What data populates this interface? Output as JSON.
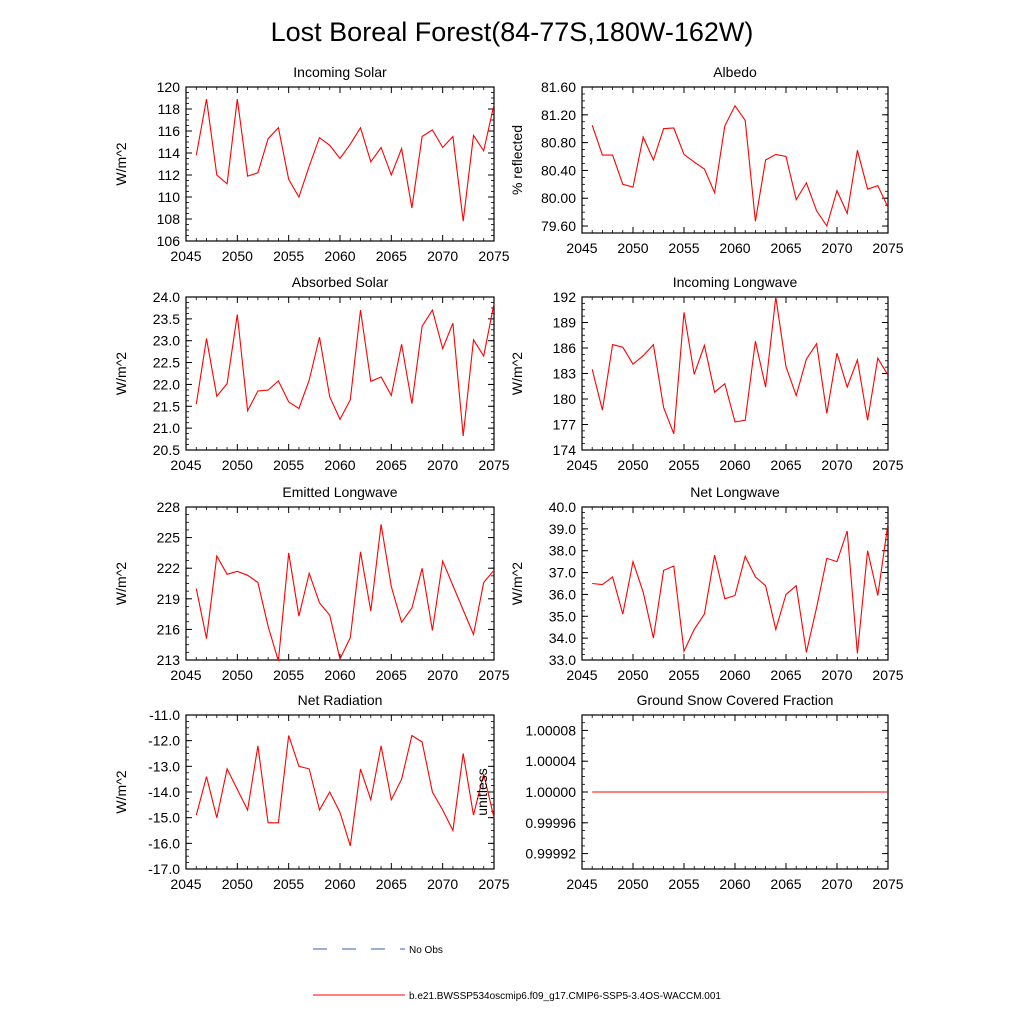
{
  "figure": {
    "title": "Lost Boreal Forest(84-77S,180W-162W)",
    "legend": {
      "obs_label": "No Obs",
      "model_label": "b.e21.BWSSP534oscmip6.f09_g17.CMIP6-SSP5-3.4OS-WACCM.001",
      "obs_color": "#3b5bb5",
      "model_color": "#ff0000"
    }
  },
  "chart_data": [
    {
      "type": "line",
      "title": "Incoming Solar",
      "ylabel": "W/m^2",
      "xlim": [
        2045,
        2075
      ],
      "ylim": [
        106,
        120
      ],
      "xticks": [
        2045,
        2050,
        2055,
        2060,
        2065,
        2070,
        2075
      ],
      "yticks": [
        "106",
        "108",
        "110",
        "112",
        "114",
        "116",
        "118",
        "120"
      ],
      "yticks_values": [
        106,
        108,
        110,
        112,
        114,
        116,
        118,
        120
      ],
      "x": [
        2046,
        2047,
        2048,
        2049,
        2050,
        2051,
        2052,
        2053,
        2054,
        2055,
        2056,
        2057,
        2058,
        2059,
        2060,
        2061,
        2062,
        2063,
        2064,
        2065,
        2066,
        2067,
        2068,
        2069,
        2070,
        2071,
        2072,
        2073,
        2074,
        2075
      ],
      "values": [
        113.8,
        118.9,
        112.0,
        111.2,
        118.9,
        111.9,
        112.2,
        115.3,
        116.3,
        111.6,
        110.0,
        112.8,
        115.4,
        114.7,
        113.5,
        114.8,
        116.3,
        113.2,
        114.5,
        112.0,
        114.4,
        109.0,
        115.5,
        116.1,
        114.5,
        115.5,
        107.8,
        115.6,
        114.2,
        118.4
      ]
    },
    {
      "type": "line",
      "title": "Albedo",
      "ylabel": "% reflected",
      "xlim": [
        2045,
        2075
      ],
      "ylim": [
        79.5,
        81.6
      ],
      "xticks": [
        2045,
        2050,
        2055,
        2060,
        2065,
        2070,
        2075
      ],
      "yticks": [
        "79.60",
        "80.00",
        "80.40",
        "80.80",
        "81.20",
        "81.60"
      ],
      "yticks_values": [
        79.6,
        80.0,
        80.4,
        80.8,
        81.2,
        81.6
      ],
      "x": [
        2046,
        2047,
        2048,
        2049,
        2050,
        2051,
        2052,
        2053,
        2054,
        2055,
        2056,
        2057,
        2058,
        2059,
        2060,
        2061,
        2062,
        2063,
        2064,
        2065,
        2066,
        2067,
        2068,
        2069,
        2070,
        2071,
        2072,
        2073,
        2074,
        2075
      ],
      "values": [
        81.05,
        80.62,
        80.62,
        80.2,
        80.16,
        80.88,
        80.55,
        81.0,
        81.01,
        80.63,
        80.52,
        80.42,
        80.08,
        81.04,
        81.33,
        81.12,
        79.67,
        80.55,
        80.63,
        80.6,
        79.98,
        80.22,
        79.82,
        79.6,
        80.11,
        79.78,
        80.69,
        80.13,
        80.18,
        79.87
      ]
    },
    {
      "type": "line",
      "title": "Absorbed Solar",
      "ylabel": "W/m^2",
      "xlim": [
        2045,
        2075
      ],
      "ylim": [
        20.5,
        24.0
      ],
      "xticks": [
        2045,
        2050,
        2055,
        2060,
        2065,
        2070,
        2075
      ],
      "yticks": [
        "20.5",
        "21.0",
        "21.5",
        "22.0",
        "22.5",
        "23.0",
        "23.5",
        "24.0"
      ],
      "yticks_values": [
        20.5,
        21.0,
        21.5,
        22.0,
        22.5,
        23.0,
        23.5,
        24.0
      ],
      "x": [
        2046,
        2047,
        2048,
        2049,
        2050,
        2051,
        2052,
        2053,
        2054,
        2055,
        2056,
        2057,
        2058,
        2059,
        2060,
        2061,
        2062,
        2063,
        2064,
        2065,
        2066,
        2067,
        2068,
        2069,
        2070,
        2071,
        2072,
        2073,
        2074,
        2075
      ],
      "values": [
        21.55,
        23.05,
        21.73,
        22.02,
        23.6,
        21.4,
        21.85,
        21.87,
        22.08,
        21.6,
        21.45,
        22.1,
        23.08,
        21.72,
        21.2,
        21.65,
        23.7,
        22.07,
        22.17,
        21.75,
        22.92,
        21.56,
        23.33,
        23.7,
        22.82,
        23.4,
        20.82,
        23.02,
        22.65,
        23.85
      ]
    },
    {
      "type": "line",
      "title": "Incoming Longwave",
      "ylabel": "W/m^2",
      "xlim": [
        2045,
        2075
      ],
      "ylim": [
        174,
        192
      ],
      "xticks": [
        2045,
        2050,
        2055,
        2060,
        2065,
        2070,
        2075
      ],
      "yticks": [
        "174",
        "177",
        "180",
        "183",
        "186",
        "189",
        "192"
      ],
      "yticks_values": [
        174,
        177,
        180,
        183,
        186,
        189,
        192
      ],
      "x": [
        2046,
        2047,
        2048,
        2049,
        2050,
        2051,
        2052,
        2053,
        2054,
        2055,
        2056,
        2057,
        2058,
        2059,
        2060,
        2061,
        2062,
        2063,
        2064,
        2065,
        2066,
        2067,
        2068,
        2069,
        2070,
        2071,
        2072,
        2073,
        2074,
        2075
      ],
      "values": [
        183.5,
        178.7,
        186.4,
        186.1,
        184.1,
        185.1,
        186.4,
        179.0,
        175.9,
        190.2,
        182.9,
        186.3,
        180.8,
        181.8,
        177.3,
        177.5,
        186.8,
        181.4,
        192.0,
        183.8,
        180.4,
        184.7,
        186.5,
        178.3,
        185.4,
        181.4,
        184.6,
        177.5,
        184.8,
        182.8
      ]
    },
    {
      "type": "line",
      "title": "Emitted Longwave",
      "ylabel": "W/m^2",
      "xlim": [
        2045,
        2075
      ],
      "ylim": [
        213,
        228
      ],
      "xticks": [
        2045,
        2050,
        2055,
        2060,
        2065,
        2070,
        2075
      ],
      "yticks": [
        "213",
        "216",
        "219",
        "222",
        "225",
        "228"
      ],
      "yticks_values": [
        213,
        216,
        219,
        222,
        225,
        228
      ],
      "x": [
        2046,
        2047,
        2048,
        2049,
        2050,
        2051,
        2052,
        2053,
        2054,
        2055,
        2056,
        2057,
        2058,
        2059,
        2060,
        2061,
        2062,
        2063,
        2064,
        2065,
        2066,
        2067,
        2068,
        2069,
        2070,
        2071,
        2072,
        2073,
        2074,
        2075
      ],
      "values": [
        220.0,
        215.1,
        223.2,
        221.4,
        221.7,
        221.3,
        220.6,
        216.3,
        212.9,
        223.5,
        217.3,
        221.5,
        218.6,
        217.4,
        213.1,
        215.2,
        223.6,
        217.8,
        226.3,
        220.2,
        216.7,
        218.1,
        222.0,
        215.9,
        222.7,
        220.3,
        217.9,
        215.5,
        220.6,
        221.8
      ]
    },
    {
      "type": "line",
      "title": "Net Longwave",
      "ylabel": "W/m^2",
      "xlim": [
        2045,
        2075
      ],
      "ylim": [
        33.0,
        40.0
      ],
      "xticks": [
        2045,
        2050,
        2055,
        2060,
        2065,
        2070,
        2075
      ],
      "yticks": [
        "33.0",
        "34.0",
        "35.0",
        "36.0",
        "37.0",
        "38.0",
        "39.0",
        "40.0"
      ],
      "yticks_values": [
        33,
        34,
        35,
        36,
        37,
        38,
        39,
        40
      ],
      "x": [
        2046,
        2047,
        2048,
        2049,
        2050,
        2051,
        2052,
        2053,
        2054,
        2055,
        2056,
        2057,
        2058,
        2059,
        2060,
        2061,
        2062,
        2063,
        2064,
        2065,
        2066,
        2067,
        2068,
        2069,
        2070,
        2071,
        2072,
        2073,
        2074,
        2075
      ],
      "values": [
        36.5,
        36.45,
        36.8,
        35.1,
        37.5,
        36.1,
        34.0,
        37.1,
        37.3,
        33.4,
        34.4,
        35.1,
        37.8,
        35.8,
        35.95,
        37.75,
        36.8,
        36.4,
        34.4,
        36.0,
        36.4,
        33.35,
        35.4,
        37.65,
        37.5,
        38.9,
        33.3,
        38.0,
        35.95,
        39.25
      ]
    },
    {
      "type": "line",
      "title": "Net Radiation",
      "ylabel": "W/m^2",
      "xlim": [
        2045,
        2075
      ],
      "ylim": [
        -17.0,
        -11.0
      ],
      "xticks": [
        2045,
        2050,
        2055,
        2060,
        2065,
        2070,
        2075
      ],
      "yticks": [
        "-17.0",
        "-16.0",
        "-15.0",
        "-14.0",
        "-13.0",
        "-12.0",
        "-11.0"
      ],
      "yticks_values": [
        -17,
        -16,
        -15,
        -14,
        -13,
        -12,
        -11
      ],
      "x": [
        2046,
        2047,
        2048,
        2049,
        2050,
        2051,
        2052,
        2053,
        2054,
        2055,
        2056,
        2057,
        2058,
        2059,
        2060,
        2061,
        2062,
        2063,
        2064,
        2065,
        2066,
        2067,
        2068,
        2069,
        2070,
        2071,
        2072,
        2073,
        2074,
        2075
      ],
      "values": [
        -14.9,
        -13.4,
        -15.0,
        -13.1,
        -13.9,
        -14.7,
        -12.2,
        -15.2,
        -15.2,
        -11.8,
        -13.0,
        -13.1,
        -14.7,
        -14.0,
        -14.8,
        -16.1,
        -13.1,
        -14.3,
        -12.2,
        -14.3,
        -13.5,
        -11.8,
        -12.05,
        -14.0,
        -14.7,
        -15.5,
        -12.5,
        -14.9,
        -13.3,
        -15.0
      ]
    },
    {
      "type": "line",
      "title": "Ground Snow Covered Fraction",
      "ylabel": "unitless",
      "xlim": [
        2045,
        2075
      ],
      "ylim": [
        0.9999,
        1.0001
      ],
      "xticks": [
        2045,
        2050,
        2055,
        2060,
        2065,
        2070,
        2075
      ],
      "yticks": [
        "0.99992",
        "0.99996",
        "1.00000",
        "1.00004",
        "1.00008"
      ],
      "yticks_values": [
        0.99992,
        0.99996,
        1.0,
        1.00004,
        1.00008
      ],
      "x": [
        2046,
        2075
      ],
      "values": [
        1.0,
        1.0
      ]
    }
  ]
}
